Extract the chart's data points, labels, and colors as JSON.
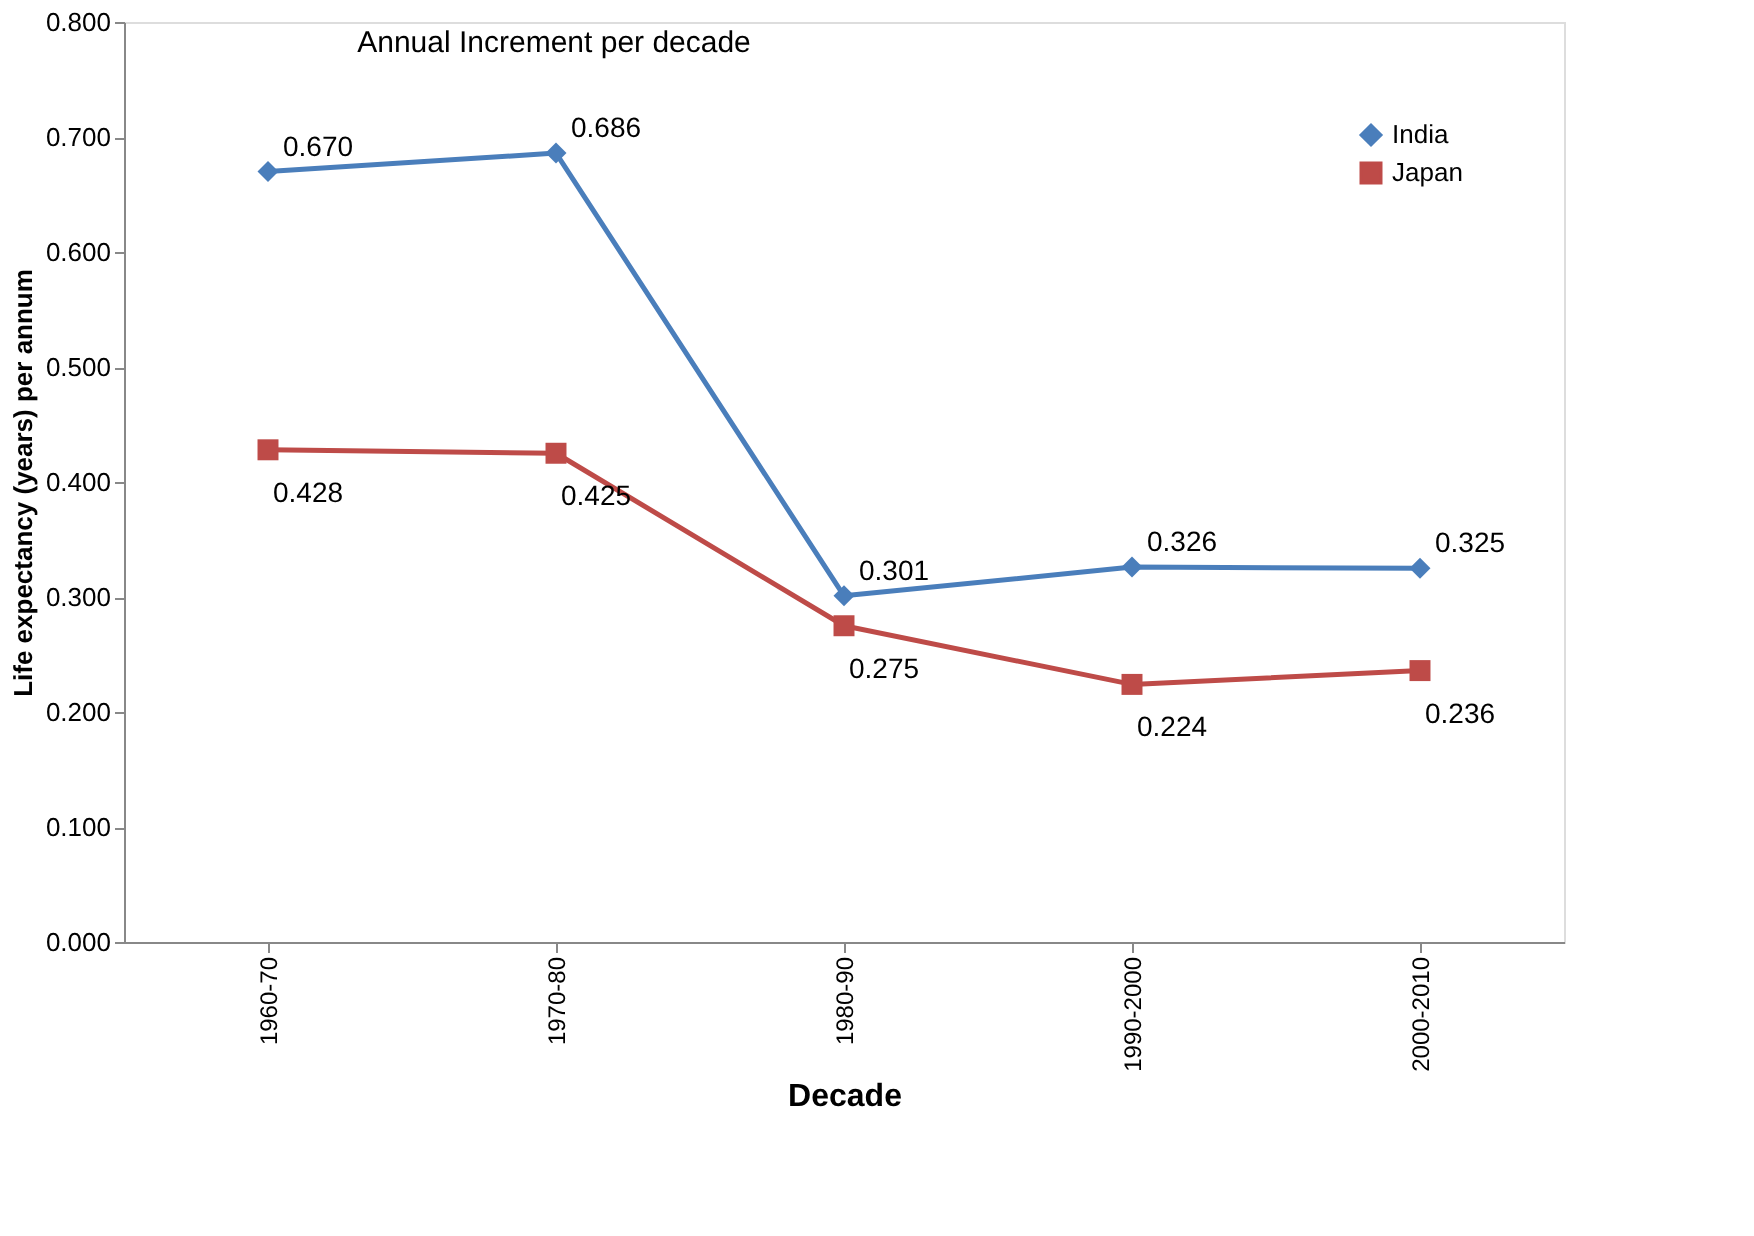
{
  "chart_data": {
    "type": "line",
    "title": "Annual Increment per decade",
    "xlabel": "Decade",
    "ylabel": "Life expectancy (years) per annum",
    "categories": [
      "1960-70",
      "1970-80",
      "1980-90",
      "1990-2000",
      "2000-2010"
    ],
    "series": [
      {
        "name": "India",
        "color": "#4a7ebb",
        "marker": "diamond",
        "values": [
          0.67,
          0.686,
          0.301,
          0.326,
          0.325
        ],
        "value_labels": [
          "0.670",
          "0.686",
          "0.301",
          "0.326",
          "0.325"
        ]
      },
      {
        "name": "Japan",
        "color": "#be4b48",
        "marker": "square",
        "values": [
          0.428,
          0.425,
          0.275,
          0.224,
          0.236
        ],
        "value_labels": [
          "0.428",
          "0.425",
          "0.275",
          "0.224",
          "0.236"
        ]
      }
    ],
    "ylim": [
      0,
      0.8
    ],
    "yticks": [
      {
        "value": 0,
        "label": "0.000"
      },
      {
        "value": 0.1,
        "label": "0.100"
      },
      {
        "value": 0.2,
        "label": "0.200"
      },
      {
        "value": 0.3,
        "label": "0.300"
      },
      {
        "value": 0.4,
        "label": "0.400"
      },
      {
        "value": 0.5,
        "label": "0.500"
      },
      {
        "value": 0.6,
        "label": "0.600"
      },
      {
        "value": 0.7,
        "label": "0.700"
      },
      {
        "value": 0.8,
        "label": "0.800"
      }
    ],
    "grid": false,
    "legend": "top right",
    "line_style": "solid"
  }
}
